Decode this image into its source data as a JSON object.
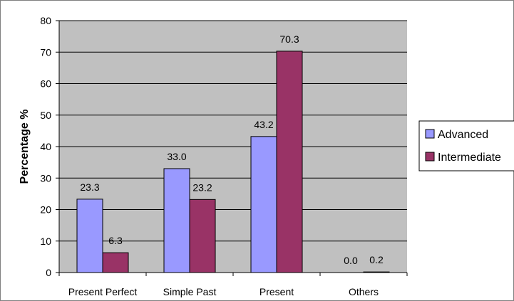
{
  "chart_data": {
    "type": "bar",
    "categories": [
      "Present Perfect",
      "Simple Past",
      "Present",
      "Others"
    ],
    "series": [
      {
        "name": "Advanced",
        "values": [
          23.3,
          33.0,
          43.2,
          0.0
        ],
        "labels": [
          "23.3",
          "33.0",
          "43.2",
          "0.0"
        ],
        "color": "#9999ff"
      },
      {
        "name": "Intermediate",
        "values": [
          6.3,
          23.2,
          70.3,
          0.2
        ],
        "labels": [
          "6.3",
          "23.2",
          "70.3",
          "0.2"
        ],
        "color": "#993366"
      }
    ],
    "title": "",
    "xlabel": "",
    "ylabel": "Percentage %",
    "ylim": [
      0,
      80
    ],
    "yticks": [
      0,
      10,
      20,
      30,
      40,
      50,
      60,
      70,
      80
    ],
    "grid": true,
    "legend_position": "right",
    "plot_background": "#c0c0c0"
  }
}
